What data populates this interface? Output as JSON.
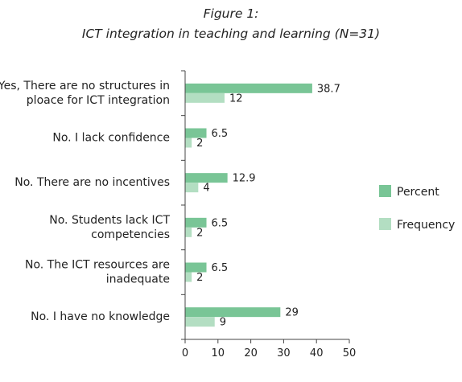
{
  "chart_data": {
    "type": "bar",
    "orientation": "horizontal",
    "title": [
      "Figure 1:",
      "ICT integration in teaching and learning (N=31)"
    ],
    "categories": [
      [
        "Yes, There are no structures in",
        "ploace for ICT integration"
      ],
      [
        "No. I lack confidence"
      ],
      [
        "No. There are no incentives"
      ],
      [
        "No. Students lack ICT",
        "competencies"
      ],
      [
        "No. The ICT resources are",
        "inadequate"
      ],
      [
        "No. I have no knowledge"
      ]
    ],
    "series": [
      {
        "name": "Percent",
        "color": "#79c596",
        "values": [
          38.7,
          6.5,
          12.9,
          6.5,
          6.5,
          29
        ],
        "labels": [
          "38.7",
          "6.5",
          "12.9",
          "6.5",
          "6.5",
          "29"
        ]
      },
      {
        "name": "Frequency",
        "color": "#b3dec2",
        "values": [
          12,
          2,
          4,
          2,
          2,
          9
        ],
        "labels": [
          "12",
          "2",
          "4",
          "2",
          "2",
          "9"
        ]
      }
    ],
    "xlim": [
      0,
      50
    ],
    "xticks": [
      0,
      10,
      20,
      30,
      40,
      50
    ],
    "grid": false,
    "legend_position": "right"
  }
}
